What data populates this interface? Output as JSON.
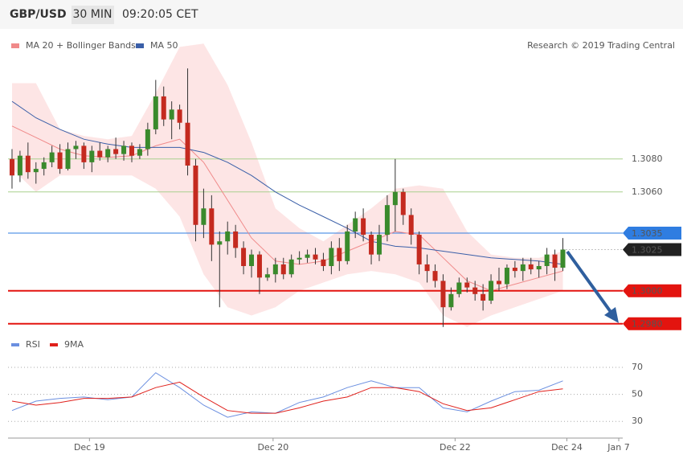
{
  "header": {
    "symbol": "GBP/USD",
    "interval": "30 MIN",
    "time": "09:20:05 CET",
    "credit": "Research © 2019 Trading Central"
  },
  "chart_data": [
    {
      "type": "candlestick",
      "xlim": [
        -0.5,
        76.5
      ],
      "xticks": [
        {
          "value": 9.7,
          "label": "Dec 19"
        },
        {
          "value": 32.7,
          "label": "Dec 20"
        },
        {
          "value": 55.5,
          "label": "Dec 22"
        },
        {
          "value": 69.5,
          "label": "Dec 24"
        },
        {
          "value": 76,
          "label": "Jan 7"
        }
      ],
      "ylim": [
        1.2974,
        1.3157
      ],
      "up_color": "#3a8a2c",
      "down_color": "#c42a1f",
      "open": [
        1.308,
        1.307,
        1.3082,
        1.3072,
        1.3074,
        1.3078,
        1.3084,
        1.3074,
        1.3086,
        1.3088,
        1.3078,
        1.3085,
        1.3081,
        1.3086,
        1.3083,
        1.3088,
        1.3082,
        1.3086,
        1.3098,
        1.3118,
        1.3104,
        1.311,
        1.3102,
        1.3076,
        1.304,
        1.305,
        1.3028,
        1.303,
        1.3036,
        1.3026,
        1.3015,
        1.3022,
        1.3008,
        1.301,
        1.3016,
        1.301,
        1.3019,
        1.302,
        1.3022,
        1.3019,
        1.3015,
        1.3026,
        1.3018,
        1.3036,
        1.3044,
        1.3034,
        1.3022,
        1.3034,
        1.3052,
        1.306,
        1.3046,
        1.3034,
        1.3016,
        1.3012,
        1.3006,
        1.299,
        1.2998,
        1.3005,
        1.3002,
        1.2998,
        1.2994,
        1.3006,
        1.3004,
        1.3014,
        1.3012,
        1.3016,
        1.3013,
        1.3015,
        1.3022,
        1.3014
      ],
      "high": [
        1.3086,
        1.3085,
        1.309,
        1.3078,
        1.3081,
        1.3088,
        1.3089,
        1.309,
        1.3091,
        1.309,
        1.3088,
        1.309,
        1.3088,
        1.3093,
        1.3091,
        1.309,
        1.3089,
        1.3102,
        1.3128,
        1.3124,
        1.3115,
        1.3113,
        1.3135,
        1.308,
        1.3062,
        1.3058,
        1.3036,
        1.3042,
        1.304,
        1.303,
        1.3025,
        1.3024,
        1.3014,
        1.302,
        1.302,
        1.3022,
        1.3024,
        1.3025,
        1.3026,
        1.3023,
        1.303,
        1.3032,
        1.304,
        1.3048,
        1.305,
        1.3036,
        1.304,
        1.3058,
        1.308,
        1.3062,
        1.305,
        1.3036,
        1.3022,
        1.3016,
        1.301,
        1.3002,
        1.3008,
        1.3008,
        1.3006,
        1.3004,
        1.301,
        1.3014,
        1.3016,
        1.3018,
        1.302,
        1.302,
        1.3018,
        1.3026,
        1.3025,
        1.3032
      ],
      "low": [
        1.3062,
        1.3066,
        1.3068,
        1.3065,
        1.307,
        1.3075,
        1.3071,
        1.3073,
        1.308,
        1.3074,
        1.3072,
        1.3079,
        1.3078,
        1.308,
        1.3079,
        1.3078,
        1.308,
        1.3082,
        1.3095,
        1.31,
        1.3092,
        1.3098,
        1.307,
        1.303,
        1.3032,
        1.3018,
        1.299,
        1.3022,
        1.302,
        1.301,
        1.3008,
        1.2998,
        1.3006,
        1.3005,
        1.3007,
        1.3008,
        1.3016,
        1.3017,
        1.3016,
        1.3012,
        1.301,
        1.3012,
        1.3016,
        1.3032,
        1.303,
        1.3016,
        1.3018,
        1.303,
        1.3036,
        1.304,
        1.3028,
        1.301,
        1.3005,
        1.3002,
        1.2978,
        1.2988,
        1.2996,
        1.2999,
        1.2994,
        1.2988,
        1.2992,
        1.3,
        1.3001,
        1.3008,
        1.3006,
        1.301,
        1.3008,
        1.301,
        1.3006,
        1.3012
      ],
      "close": [
        1.307,
        1.3082,
        1.3072,
        1.3074,
        1.3078,
        1.3084,
        1.3074,
        1.3086,
        1.3088,
        1.3078,
        1.3085,
        1.3081,
        1.3086,
        1.3083,
        1.3088,
        1.3082,
        1.3086,
        1.3098,
        1.3118,
        1.3104,
        1.311,
        1.3102,
        1.3076,
        1.304,
        1.305,
        1.3028,
        1.303,
        1.3036,
        1.3026,
        1.3015,
        1.3022,
        1.3008,
        1.301,
        1.3016,
        1.301,
        1.3019,
        1.302,
        1.3022,
        1.3019,
        1.3015,
        1.3026,
        1.3018,
        1.3036,
        1.3044,
        1.3034,
        1.3022,
        1.3034,
        1.3052,
        1.306,
        1.3046,
        1.3034,
        1.3016,
        1.3012,
        1.3006,
        1.299,
        1.2998,
        1.3005,
        1.3002,
        1.2998,
        1.2994,
        1.3006,
        1.3004,
        1.3014,
        1.3012,
        1.3016,
        1.3013,
        1.3015,
        1.3022,
        1.3014,
        1.3025
      ],
      "line_x": [
        0,
        3,
        6,
        9,
        12,
        15,
        18,
        21,
        24,
        27,
        30,
        33,
        36,
        39,
        42,
        45,
        48,
        51,
        54,
        57,
        60,
        63,
        66,
        69
      ],
      "bands": {
        "color": "#fbd3d3",
        "upper": [
          1.3126,
          1.3126,
          1.3098,
          1.3094,
          1.3092,
          1.3094,
          1.312,
          1.3148,
          1.315,
          1.3125,
          1.309,
          1.305,
          1.3038,
          1.303,
          1.304,
          1.305,
          1.3062,
          1.3064,
          1.3062,
          1.3036,
          1.3022,
          1.302,
          1.302,
          1.3024
        ],
        "lower": [
          1.3074,
          1.306,
          1.307,
          1.307,
          1.307,
          1.307,
          1.3062,
          1.3045,
          1.301,
          1.299,
          1.2985,
          1.299,
          1.3,
          1.3005,
          1.301,
          1.3012,
          1.301,
          1.3005,
          1.2985,
          1.2978,
          1.2985,
          1.299,
          1.2995,
          1.3
        ]
      },
      "series": [
        {
          "name": "MA 20 + Bollinger Bands",
          "color": "#f08a8a",
          "values": [
            1.31,
            1.3093,
            1.3086,
            1.3082,
            1.3081,
            1.3082,
            1.3088,
            1.3092,
            1.3078,
            1.3055,
            1.3032,
            1.3018,
            1.3016,
            1.3018,
            1.3024,
            1.303,
            1.3036,
            1.3034,
            1.302,
            1.3006,
            1.3,
            1.3004,
            1.3008,
            1.3012
          ]
        },
        {
          "name": "MA 50",
          "color": "#3a5fa8",
          "values": [
            1.3115,
            1.3105,
            1.3098,
            1.3092,
            1.3089,
            1.3087,
            1.3087,
            1.3087,
            1.3084,
            1.3078,
            1.307,
            1.306,
            1.3052,
            1.3045,
            1.3038,
            1.303,
            1.3027,
            1.3026,
            1.3024,
            1.3022,
            1.302,
            1.3019,
            1.3018,
            1.3016
          ]
        }
      ],
      "levels": [
        {
          "value": 1.308,
          "label": "1.3080",
          "color": "#a9d08e",
          "style": "text",
          "width": 1,
          "dash": false
        },
        {
          "value": 1.306,
          "label": "1.3060",
          "color": "#a9d08e",
          "style": "text",
          "width": 1,
          "dash": false
        },
        {
          "value": 1.3035,
          "label": "1.3035",
          "color": "#2f7de1",
          "style": "box",
          "width": 1,
          "dash": false
        },
        {
          "value": 1.3025,
          "label": "1.3025",
          "color": "#222222",
          "style": "box",
          "width": 1,
          "dash": true
        },
        {
          "value": 1.3,
          "label": "1.3000",
          "color": "#e3140f",
          "style": "box",
          "width": 2,
          "dash": false
        },
        {
          "value": 1.298,
          "label": "1.2980",
          "color": "#e3140f",
          "style": "box",
          "width": 2,
          "dash": false
        }
      ]
    },
    {
      "type": "line",
      "ylim": [
        20,
        89
      ],
      "yticks": [
        30,
        50,
        70
      ],
      "x": [
        0,
        3,
        6,
        9,
        12,
        15,
        18,
        21,
        24,
        27,
        30,
        33,
        36,
        39,
        42,
        45,
        48,
        51,
        54,
        57,
        60,
        63,
        66,
        69
      ],
      "series": [
        {
          "name": "RSI",
          "color": "#6b8fe0",
          "values": [
            38,
            45,
            47,
            48,
            46,
            48,
            66,
            55,
            42,
            33,
            37,
            36,
            44,
            48,
            55,
            60,
            55,
            55,
            40,
            37,
            45,
            52,
            53,
            60
          ]
        },
        {
          "name": "9MA",
          "color": "#e0201b",
          "values": [
            45,
            42,
            44,
            47,
            47,
            48,
            55,
            59,
            48,
            38,
            36,
            36,
            40,
            45,
            48,
            55,
            55,
            52,
            43,
            38,
            40,
            46,
            52,
            54
          ]
        }
      ]
    }
  ]
}
